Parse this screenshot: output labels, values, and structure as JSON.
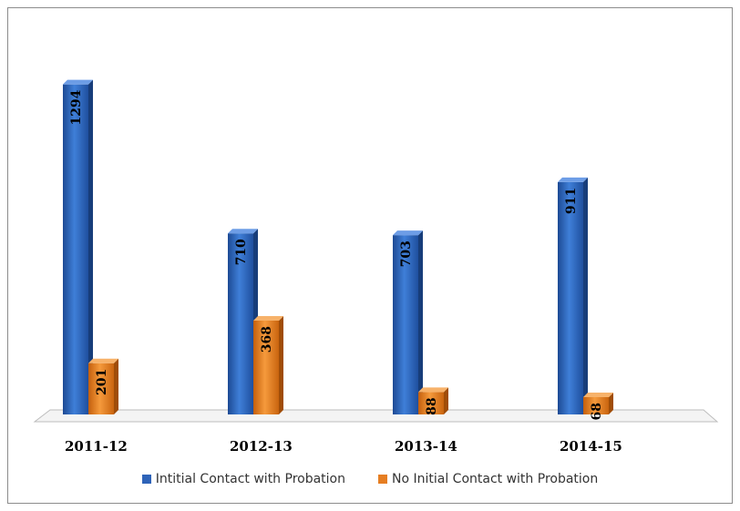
{
  "chart_data": {
    "type": "bar",
    "categories": [
      "2011-12",
      "2012-13",
      "2013-14",
      "2014-15"
    ],
    "series": [
      {
        "name": "Intitial Contact with Probation",
        "values": [
          1294,
          710,
          703,
          911
        ],
        "color": "#2e63b8"
      },
      {
        "name": "No Initial Contact with Probation",
        "values": [
          201,
          368,
          88,
          68
        ],
        "color": "#e67e22"
      }
    ],
    "ylim": [
      0,
      1350
    ],
    "grid": false,
    "legend_position": "bottom",
    "style": "3d-column"
  },
  "legend": {
    "series1_label": "Intitial Contact with Probation",
    "series2_label": "No Initial Contact with Probation"
  }
}
